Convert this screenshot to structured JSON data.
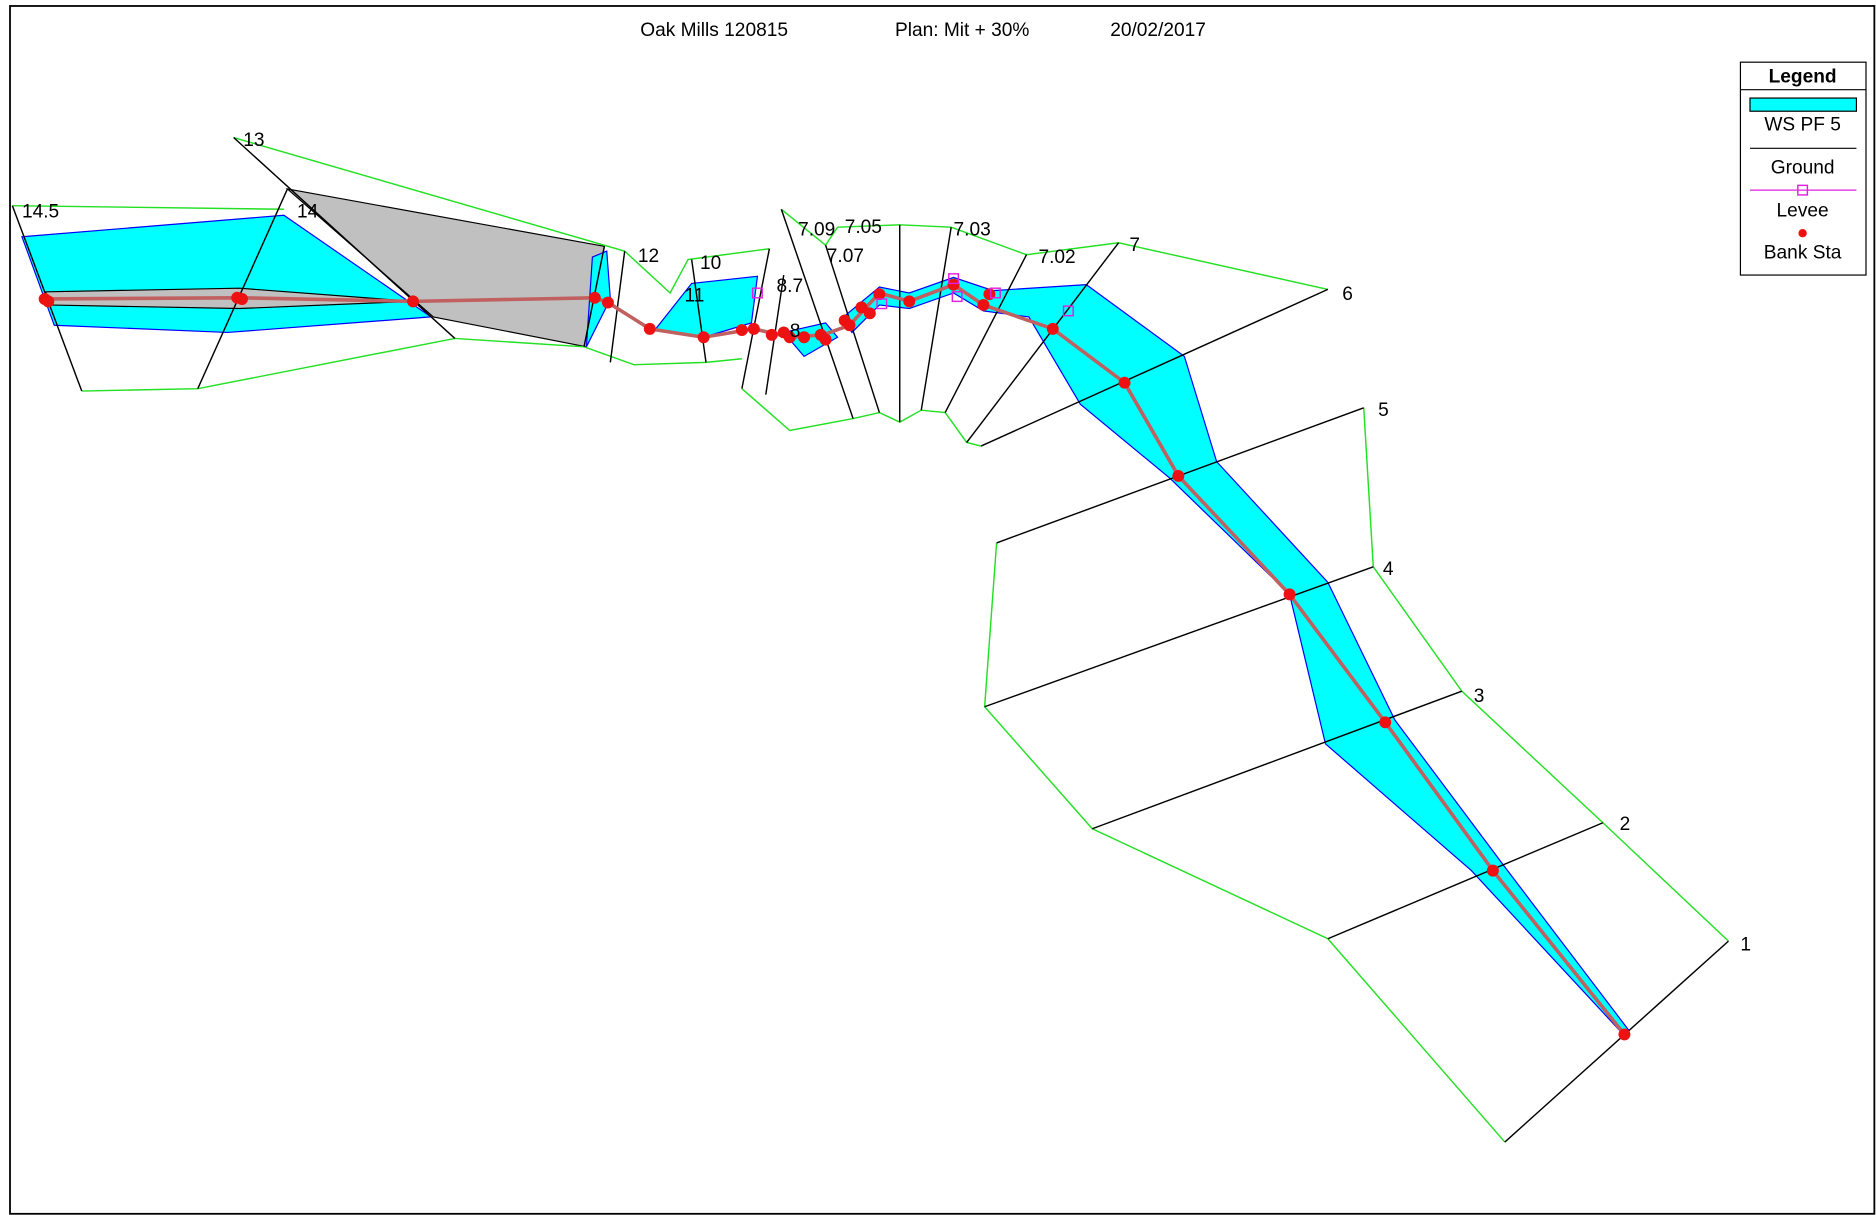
{
  "header": {
    "project": "Oak Mills 120815",
    "plan": "Plan: Mit + 30%",
    "date": "20/02/2017"
  },
  "legend": {
    "title": "Legend",
    "items": [
      "WS PF 5",
      "Ground",
      "Levee",
      "Bank Sta"
    ]
  },
  "cross_sections": [
    "14.5",
    "14",
    "13",
    "12",
    "11",
    "10",
    "8.7",
    "8",
    "7.09",
    "7.07",
    "7.05",
    "7.03",
    "7.02",
    "7",
    "6",
    "5",
    "4",
    "3",
    "2",
    "1"
  ]
}
